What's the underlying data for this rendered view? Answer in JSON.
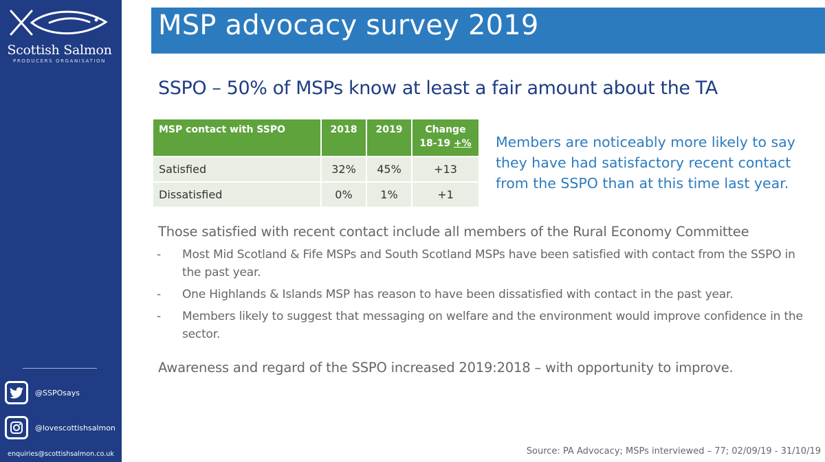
{
  "sidebar": {
    "brand_name": "Scottish Salmon",
    "brand_sub": "PRODUCERS ORGANISATION",
    "twitter_handle": "@SSPOsays",
    "instagram_handle": "@lovescottishsalmon",
    "email": "enquiries@scottishsalmon.co.uk",
    "colors": {
      "background": "#1f3c84"
    }
  },
  "title": "MSP advocacy survey 2019",
  "subtitle": "SSPO – 50% of MSPs know at least a fair amount about the TA",
  "table": {
    "headers": [
      "MSP contact with SSPO",
      "2018",
      "2019",
      "Change",
      "18-19 ",
      "+%"
    ],
    "rows": [
      [
        "Satisfied",
        "32%",
        "45%",
        "+13"
      ],
      [
        "Dissatisfied",
        "0%",
        "1%",
        "+1"
      ]
    ],
    "colors": {
      "header": "#5fa33c",
      "cell": "#e8eee3"
    }
  },
  "callout": "Members are noticeably more likely to say they have had satisfactory recent contact from the SSPO than at this time last year.",
  "body": {
    "heading": "Those satisfied with recent contact include all members of the Rural Economy Committee",
    "dash": "-",
    "bullets": [
      "Most Mid Scotland & Fife MSPs and South Scotland MSPs have been satisfied with contact from the SSPO in the past year.",
      "One Highlands & Islands MSP has reason to have been dissatisfied with contact in the past year.",
      "Members likely to suggest that messaging on welfare and the environment would improve confidence in the sector."
    ],
    "conclusion": "Awareness and regard of the SSPO increased 2019:2018 – with opportunity to improve."
  },
  "source": "Source: PA Advocacy; MSPs interviewed – 77; 02/09/19 - 31/10/19",
  "icons": [
    "salmon-logo-icon",
    "twitter-icon",
    "instagram-icon"
  ],
  "colors": {
    "title_band": "#2c7bbf",
    "subtitle": "#1f3c84",
    "callout": "#2c7bbf"
  }
}
